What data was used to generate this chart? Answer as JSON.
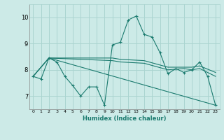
{
  "title": "",
  "xlabel": "Humidex (Indice chaleur)",
  "ylabel": "",
  "bg_color": "#cceae7",
  "grid_color": "#aad4d0",
  "line_color": "#1a7a6e",
  "xlim": [
    -0.5,
    23.5
  ],
  "ylim": [
    6.5,
    10.5
  ],
  "yticks": [
    7,
    8,
    9,
    10
  ],
  "xticks": [
    0,
    1,
    2,
    3,
    4,
    5,
    6,
    7,
    8,
    9,
    10,
    11,
    12,
    13,
    14,
    15,
    16,
    17,
    18,
    19,
    20,
    21,
    22,
    23
  ],
  "series": [
    {
      "x": [
        0,
        1,
        2,
        3,
        4,
        5,
        6,
        7,
        8,
        9,
        10,
        11,
        12,
        13,
        14,
        15,
        16,
        17,
        18,
        19,
        20,
        21,
        22,
        23
      ],
      "y": [
        7.75,
        7.65,
        8.45,
        8.3,
        7.75,
        7.4,
        7.0,
        7.35,
        7.35,
        6.65,
        8.95,
        9.05,
        9.9,
        10.05,
        9.35,
        9.25,
        8.65,
        7.85,
        8.05,
        7.9,
        8.0,
        8.3,
        7.75,
        6.65
      ]
    },
    {
      "x": [
        0,
        2,
        23
      ],
      "y": [
        7.75,
        8.45,
        6.65
      ]
    },
    {
      "x": [
        0,
        2,
        10,
        11,
        14,
        17,
        19,
        20,
        21,
        23
      ],
      "y": [
        7.75,
        8.45,
        8.35,
        8.3,
        8.25,
        8.0,
        8.05,
        8.0,
        8.05,
        7.75
      ]
    },
    {
      "x": [
        0,
        2,
        10,
        11,
        14,
        17,
        19,
        20,
        21,
        23
      ],
      "y": [
        7.75,
        8.45,
        8.45,
        8.4,
        8.35,
        8.1,
        8.1,
        8.1,
        8.15,
        7.9
      ]
    }
  ]
}
